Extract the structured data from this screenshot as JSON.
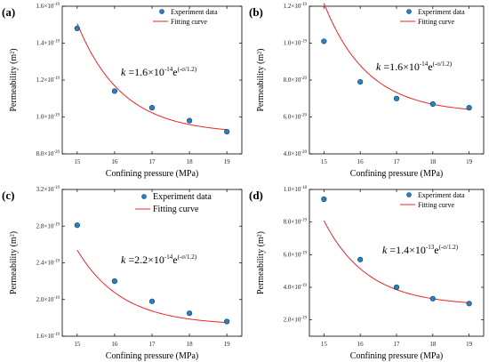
{
  "colors": {
    "fit_line": "#e8262a",
    "marker_fill": "#2a7fc0",
    "marker_stroke": "#0f3f66",
    "axis": "#000000"
  },
  "chart_data": [
    {
      "panel": "(a)",
      "type": "scatter",
      "xlabel": "Confining pressure (MPa)",
      "ylabel": "Permeability (m²)",
      "x_ticks": [
        "15",
        "16",
        "17",
        "18",
        "19"
      ],
      "y_ticks": [
        {
          "mant": "8.0",
          "exp": "-20",
          "value": 8e-20
        },
        {
          "mant": "1.0",
          "exp": "-19",
          "value": 1e-19
        },
        {
          "mant": "1.2",
          "exp": "-19",
          "value": 1.2e-19
        },
        {
          "mant": "1.4",
          "exp": "-19",
          "value": 1.4e-19
        },
        {
          "mant": "1.6",
          "exp": "-19",
          "value": 1.6e-19
        }
      ],
      "xlim": [
        14.6,
        19.4
      ],
      "ylim": [
        8e-20,
        1.6e-19
      ],
      "legend": {
        "position": "top-right",
        "experiment": "Experiment data",
        "fit": "Fitting curve",
        "size": "small"
      },
      "equation": {
        "lhs": "k",
        "coef": "1.6",
        "exp": "-14",
        "base_e": "e",
        "power": "(-σ/1.2)"
      },
      "series": [
        {
          "name": "Experiment data",
          "x": [
            15,
            16,
            17,
            18,
            19
          ],
          "y": [
            1.48e-19,
            1.14e-19,
            1.05e-19,
            9.8e-20,
            9.2e-20
          ]
        },
        {
          "name": "Fitting curve",
          "fn": {
            "a": 1.6e-14,
            "b": 1.2,
            "c": 9.1e-20
          }
        }
      ]
    },
    {
      "panel": "(b)",
      "type": "scatter",
      "xlabel": "Confining pressure (MPa)",
      "ylabel": "Permeability (m²)",
      "x_ticks": [
        "15",
        "16",
        "17",
        "18",
        "19"
      ],
      "y_ticks": [
        {
          "mant": "4.0",
          "exp": "-20",
          "value": 4e-20
        },
        {
          "mant": "6.0",
          "exp": "-20",
          "value": 6e-20
        },
        {
          "mant": "8.0",
          "exp": "-20",
          "value": 8e-20
        },
        {
          "mant": "1.0",
          "exp": "-19",
          "value": 1e-19
        },
        {
          "mant": "1.2",
          "exp": "-19",
          "value": 1.2e-19
        }
      ],
      "xlim": [
        14.6,
        19.4
      ],
      "ylim": [
        4e-20,
        1.2e-19
      ],
      "legend": {
        "position": "top-right",
        "experiment": "Experiment data",
        "fit": "Fitting curve",
        "size": "small"
      },
      "equation": {
        "lhs": "k",
        "coef": "1.6",
        "exp": "-14",
        "base_e": "e",
        "power": "(-σ/1.2)"
      },
      "series": [
        {
          "name": "Experiment data",
          "x": [
            15,
            16,
            17,
            18,
            19
          ],
          "y": [
            1.01e-19,
            7.9e-20,
            7e-20,
            6.7e-20,
            6.5e-20
          ]
        },
        {
          "name": "Fitting curve",
          "fn": {
            "a": 1.6e-14,
            "b": 1.2,
            "c": 6.2e-20
          }
        }
      ]
    },
    {
      "panel": "(c)",
      "type": "scatter",
      "xlabel": "Confining pressure (MPa)",
      "ylabel": "Permeability (m²)",
      "x_ticks": [
        "15",
        "16",
        "17",
        "18",
        "19"
      ],
      "y_ticks": [
        {
          "mant": "1.6",
          "exp": "-19",
          "value": 1.6e-19
        },
        {
          "mant": "2.0",
          "exp": "-19",
          "value": 2e-19
        },
        {
          "mant": "2.4",
          "exp": "-19",
          "value": 2.4e-19
        },
        {
          "mant": "2.8",
          "exp": "-19",
          "value": 2.8e-19
        },
        {
          "mant": "3.2",
          "exp": "-19",
          "value": 3.2e-19
        }
      ],
      "xlim": [
        14.6,
        19.4
      ],
      "ylim": [
        1.6e-19,
        3.2e-19
      ],
      "legend": {
        "position": "top-right",
        "experiment": "Experiment data",
        "fit": "Fitting curve",
        "size": "large"
      },
      "equation": {
        "lhs": "k",
        "coef": "2.2",
        "exp": "-14",
        "base_e": "e",
        "power": "(-σ/1.2)"
      },
      "series": [
        {
          "name": "Experiment data",
          "x": [
            15,
            16,
            17,
            18,
            19
          ],
          "y": [
            2.81e-19,
            2.2e-19,
            1.98e-19,
            1.85e-19,
            1.76e-19
          ]
        },
        {
          "name": "Fitting curve",
          "fn": {
            "a": 2.2e-14,
            "b": 1.2,
            "c": 1.72e-19
          }
        }
      ]
    },
    {
      "panel": "(d)",
      "type": "scatter",
      "xlabel": "Confining pressure (MPa)",
      "ylabel": "Permeability (m²)",
      "x_ticks": [
        "15",
        "16",
        "17",
        "18",
        "19"
      ],
      "y_ticks": [
        {
          "mant": "2.0",
          "exp": "-19",
          "value": 2e-19
        },
        {
          "mant": "4.0",
          "exp": "-19",
          "value": 4e-19
        },
        {
          "mant": "6.0",
          "exp": "-19",
          "value": 6e-19
        },
        {
          "mant": "8.0",
          "exp": "-19",
          "value": 8e-19
        },
        {
          "mant": "1.0",
          "exp": "-18",
          "value": 1e-18
        }
      ],
      "xlim": [
        14.6,
        19.4
      ],
      "ylim": [
        1e-19,
        1e-18
      ],
      "legend": {
        "position": "top-right",
        "experiment": "Experiment data",
        "fit": "Fitting curve",
        "size": "small"
      },
      "equation": {
        "lhs": "k",
        "coef": "1.4",
        "exp": "-13",
        "base_e": "e",
        "power": "(-σ/1.2)"
      },
      "series": [
        {
          "name": "Experiment data",
          "x": [
            15,
            16,
            17,
            18,
            19
          ],
          "y": [
            9.4e-19,
            5.7e-19,
            4e-19,
            3.3e-19,
            3e-19
          ]
        },
        {
          "name": "Fitting curve",
          "fn": {
            "a": 1.4e-13,
            "b": 1.2,
            "c": 2.87e-19
          }
        }
      ]
    }
  ]
}
